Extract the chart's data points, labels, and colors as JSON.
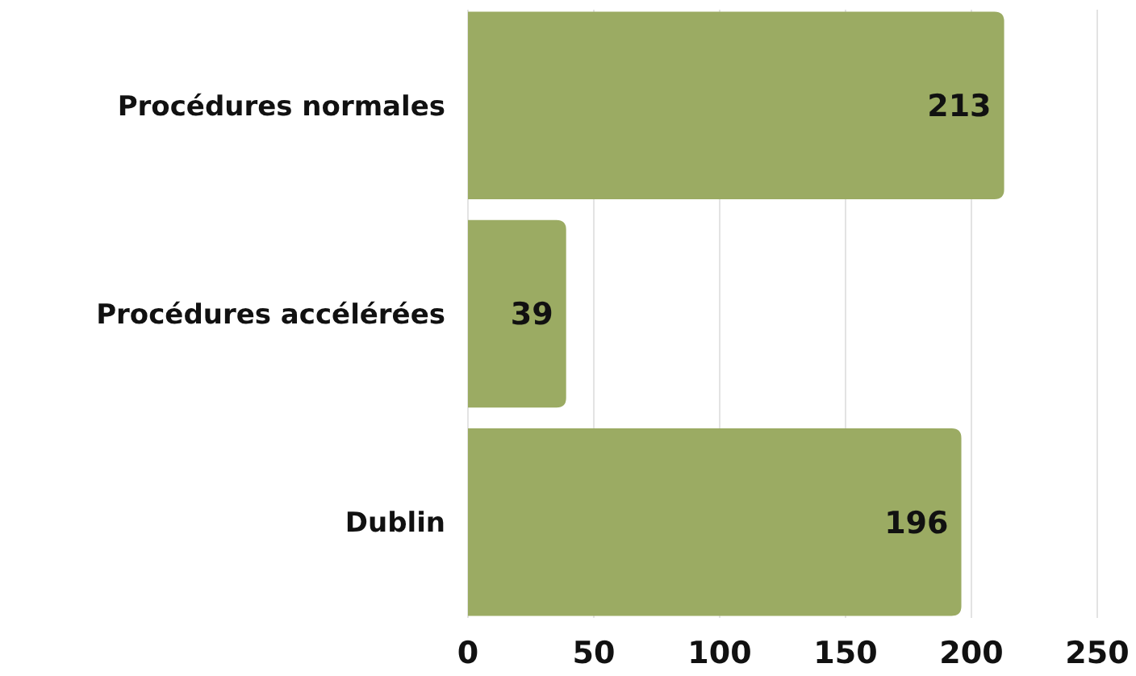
{
  "chart_data": {
    "type": "bar",
    "orientation": "horizontal",
    "categories": [
      "Procédures normales",
      "Procédures accélérées",
      "Dublin"
    ],
    "values": [
      213,
      39,
      196
    ],
    "color": "#9bab63",
    "xlim": [
      0,
      250
    ],
    "xticks": [
      0,
      50,
      100,
      150,
      200,
      250
    ],
    "grid": "x",
    "data_labels": true
  }
}
